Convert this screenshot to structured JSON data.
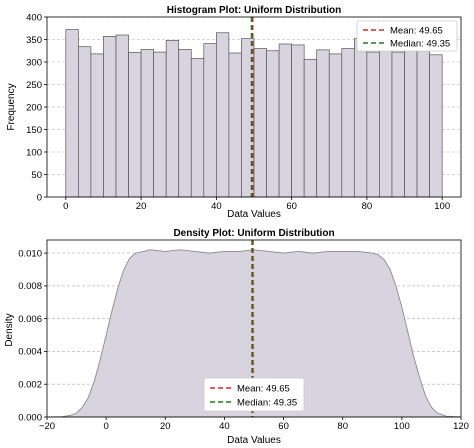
{
  "chart_data": [
    {
      "type": "bar",
      "chart_kind": "histogram",
      "title": "Histogram Plot: Uniform Distribution",
      "xlabel": "Data Values",
      "ylabel": "Frequency",
      "xlim": [
        -5,
        105
      ],
      "ylim": [
        0,
        400
      ],
      "xticks": [
        0,
        20,
        40,
        60,
        80,
        100
      ],
      "yticks": [
        0,
        50,
        100,
        150,
        200,
        250,
        300,
        350,
        400
      ],
      "grid": "y-dashed",
      "legend_position": "top-right",
      "bin_start": 0,
      "bin_width": 3.333,
      "values": [
        372,
        334,
        318,
        357,
        360,
        321,
        328,
        322,
        348,
        328,
        308,
        341,
        365,
        320,
        352,
        330,
        325,
        340,
        338,
        306,
        327,
        318,
        330,
        352,
        322,
        330,
        322,
        340,
        325,
        316
      ],
      "bar_fill": "#d9d3e0",
      "bar_edge": "#555555",
      "lines": [
        {
          "name": "Mean: 49.65",
          "x": 49.65,
          "color": "#d62728",
          "style": "dashed"
        },
        {
          "name": "Median: 49.35",
          "x": 49.35,
          "color": "#1f7a1f",
          "style": "dashed"
        }
      ]
    },
    {
      "type": "area",
      "chart_kind": "density",
      "title": "Density Plot: Uniform Distribution",
      "xlabel": "Data Values",
      "ylabel": "Density",
      "xlim": [
        -20,
        120
      ],
      "ylim": [
        0,
        0.0108
      ],
      "xticks": [
        -20,
        0,
        20,
        40,
        60,
        80,
        100,
        120
      ],
      "xtick_labels": [
        "−20",
        "0",
        "20",
        "40",
        "60",
        "80",
        "100",
        "120"
      ],
      "yticks": [
        0.0,
        0.002,
        0.004,
        0.006,
        0.008,
        0.01
      ],
      "ytick_labels": [
        "0.000",
        "0.002",
        "0.004",
        "0.006",
        "0.008",
        "0.010"
      ],
      "grid": "y-dashed",
      "legend_position": "lower-center",
      "x": [
        -20,
        -15,
        -12,
        -10,
        -8,
        -6,
        -4,
        -2,
        0,
        2,
        4,
        6,
        8,
        10,
        15,
        20,
        25,
        30,
        35,
        40,
        45,
        50,
        55,
        60,
        65,
        70,
        75,
        80,
        85,
        90,
        92,
        94,
        96,
        98,
        100,
        102,
        104,
        106,
        108,
        110,
        112,
        115,
        120
      ],
      "y": [
        0.0,
        2e-05,
        0.0001,
        0.00025,
        0.0006,
        0.0012,
        0.0022,
        0.0035,
        0.005,
        0.0065,
        0.0079,
        0.009,
        0.0097,
        0.01,
        0.0102,
        0.0101,
        0.0102,
        0.0101,
        0.01,
        0.0101,
        0.0101,
        0.0102,
        0.0101,
        0.01,
        0.0101,
        0.01,
        0.0101,
        0.0101,
        0.0101,
        0.01,
        0.0099,
        0.0096,
        0.009,
        0.008,
        0.0067,
        0.0052,
        0.0037,
        0.0024,
        0.0013,
        0.0006,
        0.00025,
        5e-05,
        0.0
      ],
      "fill": "#d9d3e0",
      "edge": "#8a8a8a",
      "lines": [
        {
          "name": "Mean: 49.65",
          "x": 49.65,
          "color": "#d62728",
          "style": "dashed"
        },
        {
          "name": "Median: 49.35",
          "x": 49.35,
          "color": "#1f7a1f",
          "style": "dashed"
        }
      ]
    }
  ]
}
